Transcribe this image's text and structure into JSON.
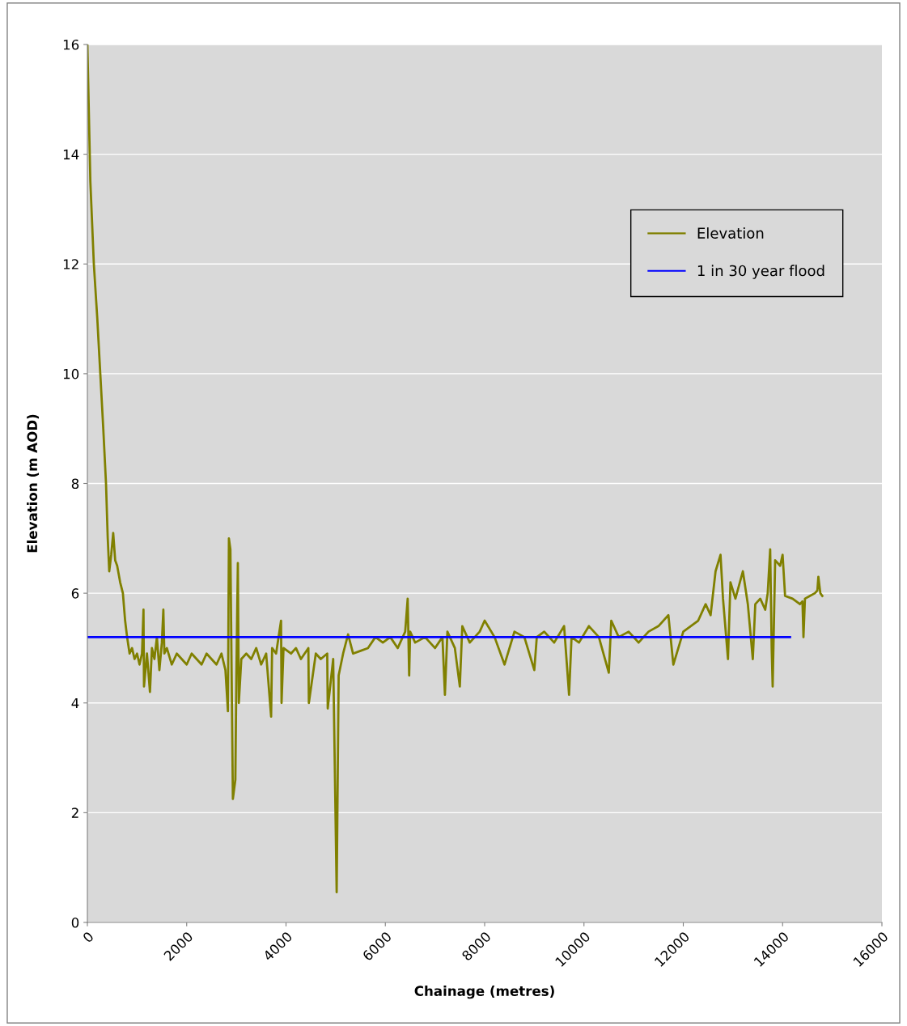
{
  "chart_data": {
    "type": "line",
    "xlabel": "Chainage (metres)",
    "ylabel": "Elevation (m AOD)",
    "xlim": [
      0,
      16000
    ],
    "ylim": [
      0,
      16
    ],
    "xticks": [
      0,
      2000,
      4000,
      6000,
      8000,
      10000,
      12000,
      14000,
      16000
    ],
    "yticks": [
      0,
      2,
      4,
      6,
      8,
      10,
      12,
      14,
      16
    ],
    "grid": "y",
    "legend": "top right",
    "marker": "none",
    "line_style": "solid",
    "series": [
      {
        "name": "Elevation",
        "color": "#808000",
        "x": [
          0,
          60,
          130,
          200,
          260,
          320,
          375,
          410,
          440,
          480,
          520,
          560,
          600,
          660,
          715,
          760,
          800,
          850,
          900,
          950,
          1000,
          1050,
          1100,
          1130,
          1140,
          1200,
          1260,
          1300,
          1350,
          1400,
          1450,
          1500,
          1530,
          1550,
          1600,
          1700,
          1800,
          1900,
          2000,
          2100,
          2200,
          2300,
          2400,
          2500,
          2600,
          2700,
          2780,
          2830,
          2850,
          2880,
          2930,
          2980,
          3000,
          3030,
          3050,
          3100,
          3200,
          3300,
          3400,
          3500,
          3600,
          3700,
          3720,
          3800,
          3900,
          3910,
          3950,
          4100,
          4200,
          4300,
          4450,
          4460,
          4600,
          4700,
          4830,
          4840,
          4950,
          5020,
          5060,
          5150,
          5250,
          5350,
          5500,
          5650,
          5800,
          5950,
          6100,
          6250,
          6400,
          6450,
          6480,
          6500,
          6600,
          6800,
          7000,
          7150,
          7200,
          7250,
          7400,
          7500,
          7550,
          7700,
          7900,
          8000,
          8200,
          8400,
          8600,
          8800,
          9000,
          9050,
          9200,
          9400,
          9600,
          9700,
          9750,
          9900,
          10100,
          10300,
          10500,
          10550,
          10700,
          10900,
          11100,
          11300,
          11500,
          11700,
          11800,
          12000,
          12150,
          12300,
          12450,
          12550,
          12650,
          12750,
          12800,
          12900,
          12950,
          13050,
          13200,
          13300,
          13400,
          13450,
          13550,
          13650,
          13700,
          13750,
          13780,
          13800,
          13850,
          13950,
          14000,
          14050,
          14200,
          14350,
          14400,
          14420,
          14450,
          14550,
          14650,
          14700,
          14720,
          14760,
          14800
        ],
        "values": [
          16,
          13.5,
          12,
          11,
          10,
          9,
          8,
          7,
          6.4,
          6.7,
          7.1,
          6.6,
          6.5,
          6.2,
          6.0,
          5.5,
          5.2,
          4.9,
          5.0,
          4.8,
          4.9,
          4.7,
          4.9,
          5.7,
          4.3,
          4.9,
          4.2,
          5.0,
          4.8,
          5.2,
          4.6,
          5.1,
          5.7,
          4.9,
          5.0,
          4.7,
          4.9,
          4.8,
          4.7,
          4.9,
          4.8,
          4.7,
          4.9,
          4.8,
          4.7,
          4.9,
          4.6,
          3.85,
          7.0,
          6.8,
          2.25,
          2.6,
          4.5,
          6.55,
          4.0,
          4.8,
          4.9,
          4.8,
          5.0,
          4.7,
          4.9,
          3.75,
          5.0,
          4.9,
          5.5,
          4.0,
          5.0,
          4.9,
          5.0,
          4.8,
          5.0,
          4.0,
          4.9,
          4.8,
          4.9,
          3.9,
          4.8,
          0.55,
          4.5,
          4.9,
          5.25,
          4.9,
          4.95,
          5.0,
          5.2,
          5.1,
          5.2,
          5.0,
          5.3,
          5.9,
          4.5,
          5.3,
          5.1,
          5.2,
          5.0,
          5.2,
          4.15,
          5.3,
          5.0,
          4.3,
          5.4,
          5.1,
          5.3,
          5.5,
          5.2,
          4.7,
          5.3,
          5.2,
          4.6,
          5.2,
          5.3,
          5.1,
          5.4,
          4.15,
          5.2,
          5.1,
          5.4,
          5.2,
          4.55,
          5.5,
          5.2,
          5.3,
          5.1,
          5.3,
          5.4,
          5.6,
          4.7,
          5.3,
          5.4,
          5.5,
          5.8,
          5.6,
          6.4,
          6.7,
          5.9,
          4.8,
          6.2,
          5.9,
          6.4,
          5.8,
          4.8,
          5.8,
          5.9,
          5.7,
          6.0,
          6.8,
          5.0,
          4.3,
          6.6,
          6.5,
          6.7,
          5.95,
          5.9,
          5.8,
          5.85,
          5.2,
          5.9,
          5.95,
          6.0,
          6.05,
          6.3,
          6.0,
          5.95
        ]
      },
      {
        "name": "1 in 30 year flood",
        "color": "#0000ff",
        "x": [
          0,
          14150
        ],
        "values": [
          5.2,
          5.2
        ]
      }
    ]
  }
}
